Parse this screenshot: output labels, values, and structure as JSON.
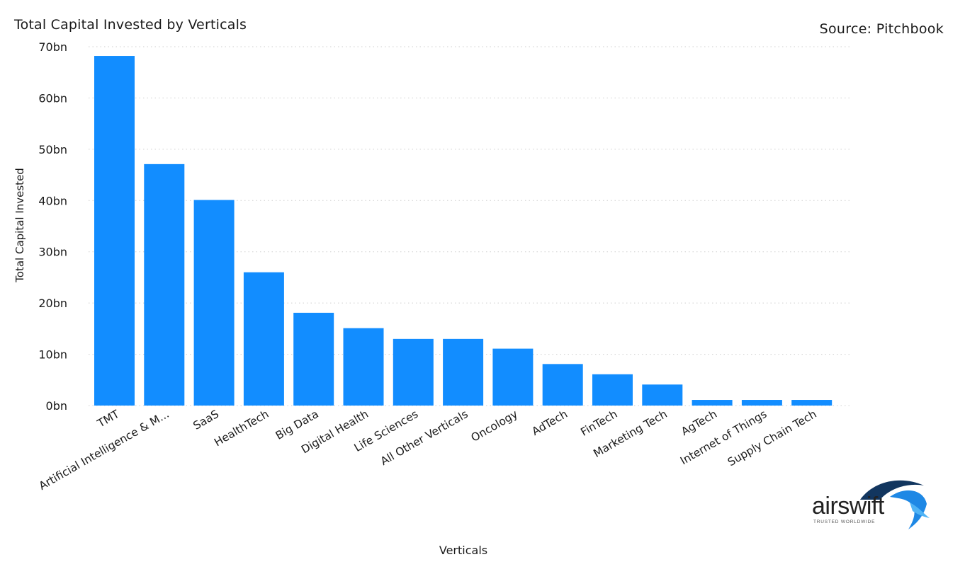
{
  "header": {
    "title": "Total Capital Invested by Verticals",
    "source": "Source: Pitchbook"
  },
  "colors": {
    "bar": "#128dff",
    "grid": "#cfcfcf",
    "text": "#1a1a1a",
    "logo_blue": "#1e88e5"
  },
  "logo": {
    "name": "airswift",
    "tagline": "TRUSTED WORLDWIDE",
    "icon": "swift-bird-icon"
  },
  "chart_data": {
    "type": "bar",
    "title": "Total Capital Invested by Verticals",
    "xlabel": "Verticals",
    "ylabel": "Total Capital Invested",
    "ylim": [
      0,
      70
    ],
    "yticks": [
      "0bn",
      "10bn",
      "20bn",
      "30bn",
      "40bn",
      "50bn",
      "60bn",
      "70bn"
    ],
    "grid": true,
    "categories": [
      "TMT",
      "Artificial Intelligence & M...",
      "SaaS",
      "HealthTech",
      "Big Data",
      "Digital Health",
      "Life Sciences",
      "All Other Verticals",
      "Oncology",
      "AdTech",
      "FinTech",
      "Marketing Tech",
      "AgTech",
      "Internet of Things",
      "Supply Chain Tech"
    ],
    "values": [
      68.2,
      47.1,
      40.1,
      26.0,
      18.1,
      15.1,
      13.0,
      13.0,
      11.1,
      8.1,
      6.1,
      4.1,
      1.1,
      1.1,
      1.1
    ]
  }
}
